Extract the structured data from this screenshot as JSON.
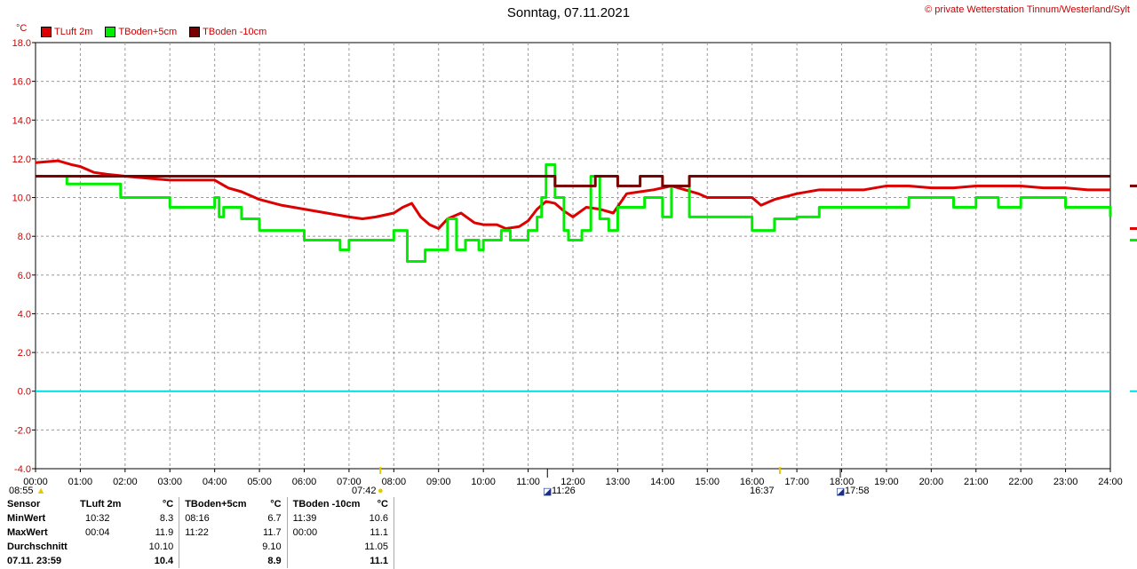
{
  "header": {
    "title": "Sonntag, 07.11.2021",
    "copyright": "© private Wetterstation Tinnum/Westerland/Sylt"
  },
  "chart_data": {
    "type": "line",
    "unit": "°C",
    "ylim": [
      -4,
      18
    ],
    "yticks": [
      "18.0",
      "16.0",
      "14.0",
      "12.0",
      "10.0",
      "8.0",
      "6.0",
      "4.0",
      "2.0",
      "0.0",
      "-2.0",
      "-4.0"
    ],
    "xlim": [
      0,
      24
    ],
    "xticks": [
      "00:00",
      "01:00",
      "02:00",
      "03:00",
      "04:00",
      "05:00",
      "06:00",
      "07:00",
      "08:00",
      "09:00",
      "10:00",
      "11:00",
      "12:00",
      "13:00",
      "14:00",
      "15:00",
      "16:00",
      "17:00",
      "18:00",
      "19:00",
      "20:00",
      "21:00",
      "22:00",
      "23:00",
      "24:00"
    ],
    "grid": true,
    "legend_position": "top-left",
    "series": [
      {
        "name": "TLuft 2m",
        "color": "#dd0000",
        "x": [
          0,
          0.5,
          0.8,
          1.0,
          1.3,
          1.6,
          2.0,
          2.5,
          3.0,
          3.5,
          4.0,
          4.3,
          4.6,
          5.0,
          5.5,
          6.0,
          6.5,
          7.0,
          7.3,
          7.6,
          8.0,
          8.2,
          8.4,
          8.6,
          8.8,
          9.0,
          9.2,
          9.5,
          9.8,
          10.0,
          10.3,
          10.5,
          10.8,
          11.0,
          11.2,
          11.4,
          11.6,
          11.8,
          12.0,
          12.3,
          12.6,
          12.9,
          13.2,
          13.5,
          13.8,
          14.0,
          14.2,
          14.5,
          14.8,
          15.0,
          15.5,
          16.0,
          16.2,
          16.5,
          17.0,
          17.5,
          18.0,
          18.5,
          19.0,
          19.5,
          20.0,
          20.5,
          21.0,
          21.5,
          22.0,
          22.5,
          23.0,
          23.5,
          24.0
        ],
        "y": [
          11.8,
          11.9,
          11.7,
          11.6,
          11.3,
          11.2,
          11.1,
          11.0,
          10.9,
          10.9,
          10.9,
          10.5,
          10.3,
          9.9,
          9.6,
          9.4,
          9.2,
          9.0,
          8.9,
          9.0,
          9.2,
          9.5,
          9.7,
          9.0,
          8.6,
          8.4,
          8.9,
          9.2,
          8.7,
          8.6,
          8.6,
          8.4,
          8.5,
          8.8,
          9.4,
          9.8,
          9.7,
          9.3,
          9.0,
          9.5,
          9.4,
          9.2,
          10.2,
          10.3,
          10.4,
          10.5,
          10.6,
          10.4,
          10.2,
          10.0,
          10.0,
          10.0,
          9.6,
          9.9,
          10.2,
          10.4,
          10.4,
          10.4,
          10.6,
          10.6,
          10.5,
          10.5,
          10.6,
          10.6,
          10.6,
          10.5,
          10.5,
          10.4,
          10.4
        ]
      },
      {
        "name": "TBoden+5cm",
        "color": "#00ee00",
        "x": [
          0,
          0.7,
          1.0,
          1.5,
          1.9,
          2.0,
          2.5,
          3.0,
          3.3,
          3.6,
          4.0,
          4.1,
          4.2,
          4.6,
          5.0,
          5.5,
          6.0,
          6.5,
          6.8,
          7.0,
          7.5,
          8.0,
          8.3,
          8.7,
          9.0,
          9.2,
          9.4,
          9.6,
          9.9,
          10.0,
          10.4,
          10.6,
          11.0,
          11.2,
          11.3,
          11.4,
          11.6,
          11.8,
          11.9,
          12.2,
          12.4,
          12.6,
          12.8,
          13.0,
          13.3,
          13.6,
          13.9,
          14.0,
          14.2,
          14.3,
          14.6,
          15.0,
          15.5,
          15.9,
          16.0,
          16.5,
          16.8,
          17.0,
          17.5,
          18.0,
          18.5,
          19.0,
          19.5,
          20.0,
          20.5,
          21.0,
          21.5,
          22.0,
          22.5,
          23.0,
          23.5,
          24.0
        ],
        "y": [
          11.1,
          10.7,
          10.7,
          10.7,
          10.0,
          10.0,
          10.0,
          9.5,
          9.5,
          9.5,
          10.0,
          9.0,
          9.5,
          8.9,
          8.3,
          8.3,
          7.8,
          7.8,
          7.3,
          7.8,
          7.8,
          8.3,
          6.7,
          7.3,
          7.3,
          8.9,
          7.3,
          7.8,
          7.3,
          7.8,
          8.3,
          7.8,
          8.3,
          9.0,
          10.0,
          11.7,
          10.0,
          8.3,
          7.8,
          8.3,
          11.1,
          8.9,
          8.3,
          9.5,
          9.5,
          10.0,
          10.0,
          9.0,
          10.6,
          10.6,
          9.0,
          9.0,
          9.0,
          9.0,
          8.3,
          8.9,
          8.9,
          9.0,
          9.5,
          9.5,
          9.5,
          9.5,
          10.0,
          10.0,
          9.5,
          10.0,
          9.5,
          10.0,
          10.0,
          9.5,
          9.5,
          9.0
        ]
      },
      {
        "name": "TBoden -10cm",
        "color": "#7a0000",
        "x": [
          0,
          11.6,
          11.6,
          12.5,
          12.5,
          13.0,
          13.0,
          13.5,
          13.5,
          14.0,
          14.0,
          14.6,
          14.6,
          24.0
        ],
        "y": [
          11.1,
          11.1,
          10.6,
          10.6,
          11.1,
          11.1,
          10.6,
          10.6,
          11.1,
          11.1,
          10.6,
          10.6,
          11.1,
          11.1
        ]
      }
    ],
    "reference_line": {
      "y": 0.0,
      "color": "#00dddd"
    }
  },
  "legend": [
    {
      "label": "TLuft 2m",
      "color": "#dd0000"
    },
    {
      "label": "TBoden+5cm",
      "color": "#00ee00"
    },
    {
      "label": "TBoden -10cm",
      "color": "#7a0000"
    }
  ],
  "sun": {
    "sunrise": "07:42",
    "sunset": "16:37",
    "moonrise": "11:26",
    "moonset": "17:58",
    "daylength": "08:55"
  },
  "stats": {
    "headers": [
      "Sensor",
      "TLuft 2m",
      "°C",
      "TBoden+5cm",
      "°C",
      "TBoden -10cm",
      "°C"
    ],
    "rows": [
      {
        "label": "MinWert",
        "c1t": "10:32",
        "c1v": "8.3",
        "c2t": "08:16",
        "c2v": "6.7",
        "c3t": "11:39",
        "c3v": "10.6"
      },
      {
        "label": "MaxWert",
        "c1t": "00:04",
        "c1v": "11.9",
        "c2t": "11:22",
        "c2v": "11.7",
        "c3t": "00:00",
        "c3v": "11.1"
      },
      {
        "label": "Durchschnitt",
        "c1t": "",
        "c1v": "10.10",
        "c2t": "",
        "c2v": "9.10",
        "c3t": "",
        "c3v": "11.05"
      },
      {
        "label": "07.11. 23:59",
        "c1t": "",
        "c1v": "10.4",
        "c2t": "",
        "c2v": "8.9",
        "c3t": "",
        "c3v": "11.1"
      }
    ]
  }
}
